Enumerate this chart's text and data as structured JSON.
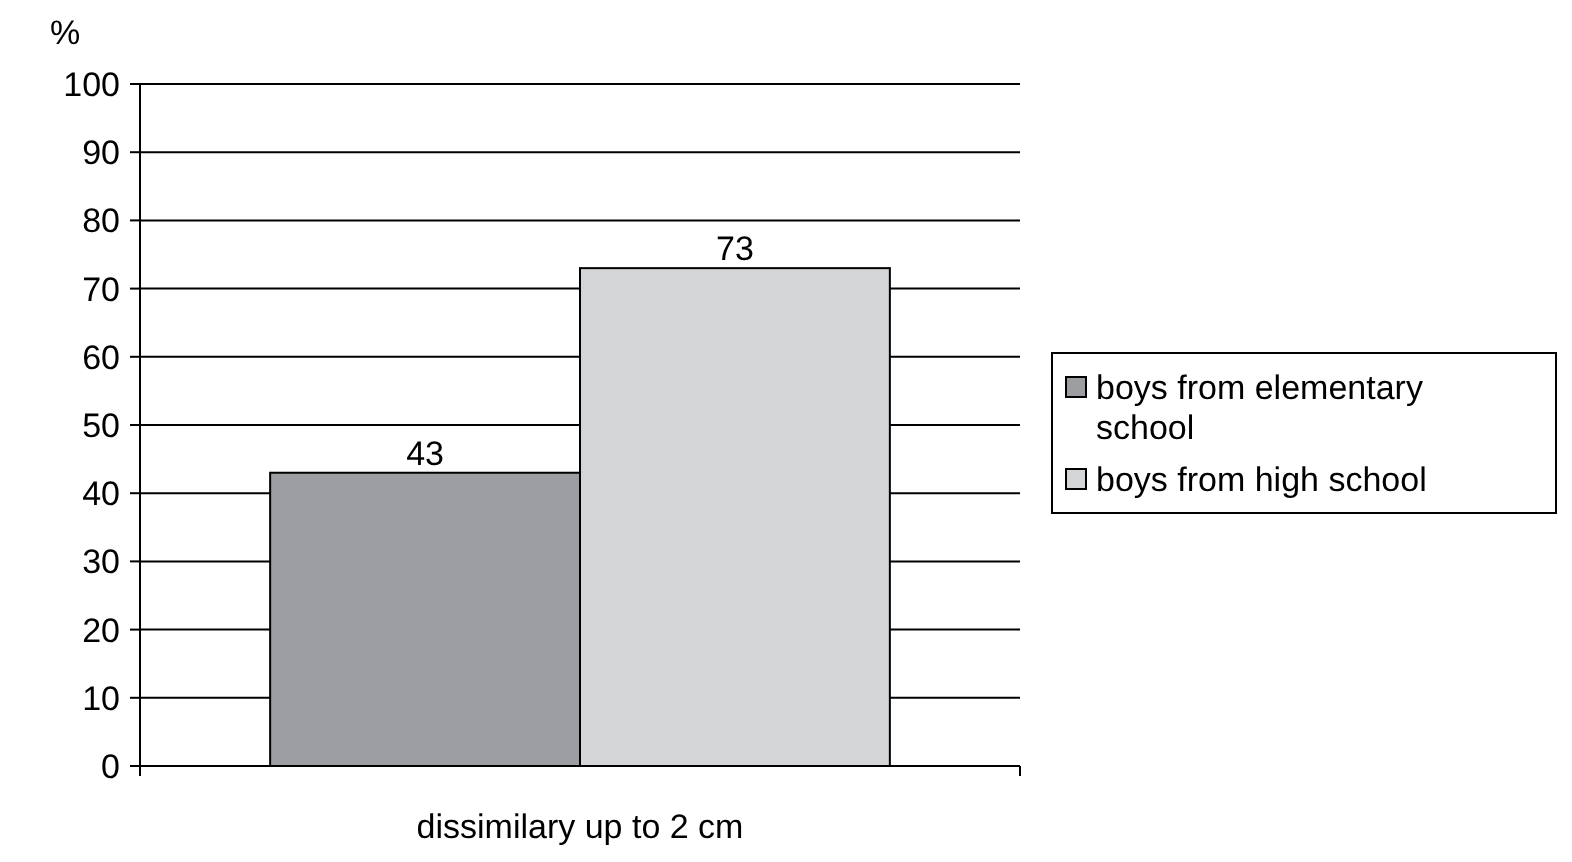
{
  "chart_data": {
    "type": "bar",
    "ylabel": "%",
    "categories": [
      "dissimilary up to 2 cm"
    ],
    "series": [
      {
        "name": "boys from elementary school",
        "color": "#9d9ea2",
        "values": [
          43
        ]
      },
      {
        "name": "boys from high school",
        "color": "#d4d5d7",
        "values": [
          73
        ]
      }
    ],
    "ylim": [
      0,
      100
    ],
    "yticks": [
      0,
      10,
      20,
      30,
      40,
      50,
      60,
      70,
      80,
      90,
      100
    ],
    "grid": "y",
    "legend": "right",
    "data_labels": true
  }
}
